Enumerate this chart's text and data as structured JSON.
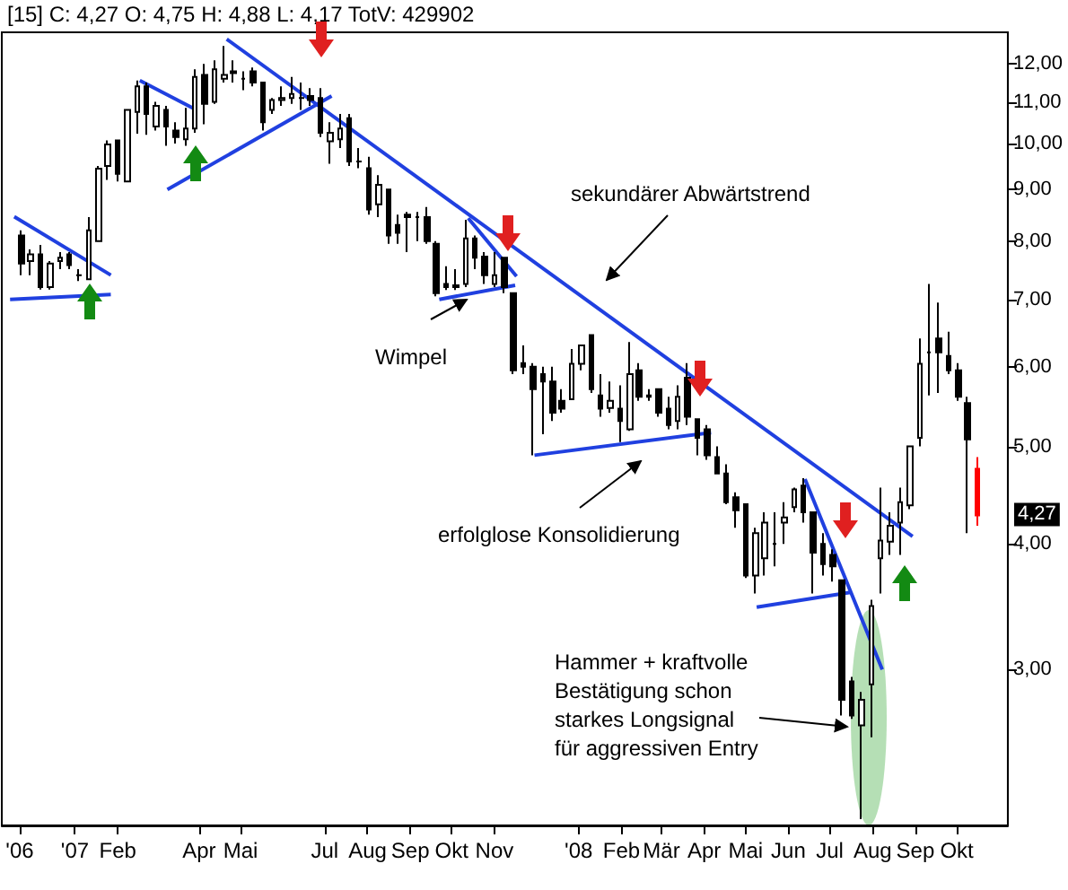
{
  "chart_data": {
    "type": "candlestick",
    "title": "[15] C: 4,27 O: 4,75 H: 4,88 L: 4,17 TotV: 429902",
    "log": true,
    "marker": "none",
    "ylim": [
      2.1,
      12.9
    ],
    "yticks": [
      {
        "value": 3,
        "label": "3,00"
      },
      {
        "value": 4,
        "label": "4,00"
      },
      {
        "value": 5,
        "label": "5,00"
      },
      {
        "value": 6,
        "label": "6,00"
      },
      {
        "value": 7,
        "label": "7,00"
      },
      {
        "value": 8,
        "label": "8,00"
      },
      {
        "value": 9,
        "label": "9,00"
      },
      {
        "value": 10,
        "label": "10,00"
      },
      {
        "value": 11,
        "label": "11,00"
      },
      {
        "value": 12,
        "label": "12,00"
      }
    ],
    "xlim": [
      "2006-11-09",
      "2008-11-07"
    ],
    "xticks": [
      {
        "value": "2006-11-22",
        "label": "'06"
      },
      {
        "value": "2007-01-01",
        "label": "'07"
      },
      {
        "value": "2007-02-01",
        "label": "Feb"
      },
      {
        "value": "2007-04-01",
        "label": "Apr"
      },
      {
        "value": "2007-05-01",
        "label": "Mai"
      },
      {
        "value": "2007-07-01",
        "label": "Jul"
      },
      {
        "value": "2007-08-01",
        "label": "Aug"
      },
      {
        "value": "2007-09-01",
        "label": "Sep"
      },
      {
        "value": "2007-10-01",
        "label": "Okt"
      },
      {
        "value": "2007-11-01",
        "label": "Nov"
      },
      {
        "value": "2008-01-01",
        "label": "'08"
      },
      {
        "value": "2008-02-01",
        "label": "Feb"
      },
      {
        "value": "2008-03-01",
        "label": "Mär"
      },
      {
        "value": "2008-04-01",
        "label": "Apr"
      },
      {
        "value": "2008-05-01",
        "label": "Mai"
      },
      {
        "value": "2008-06-01",
        "label": "Jun"
      },
      {
        "value": "2008-07-01",
        "label": "Jul"
      },
      {
        "value": "2008-08-01",
        "label": "Aug"
      },
      {
        "value": "2008-09-01",
        "label": "Sep"
      },
      {
        "value": "2008-10-01",
        "label": "Okt"
      }
    ],
    "annotations": [
      "sekundärer Abwärtstrend",
      "Wimpel",
      "erfolglose Konsolidierung",
      "Hammer + kraftvolle\nBestätigung schon\nstarkes Longsignal\nfür aggressiven Entry",
      "4,27"
    ],
    "series": [
      {
        "type": "candlestick",
        "x": [
          "2006-11-23",
          "2006-11-30",
          "2006-12-07",
          "2006-12-14",
          "2006-12-21",
          "2006-12-28",
          "2007-01-04",
          "2007-01-11",
          "2007-01-18",
          "2007-01-25",
          "2007-02-01",
          "2007-02-08",
          "2007-02-15",
          "2007-02-22",
          "2007-03-01",
          "2007-03-08",
          "2007-03-15",
          "2007-03-22",
          "2007-03-29",
          "2007-04-05",
          "2007-04-12",
          "2007-04-19",
          "2007-04-26",
          "2007-05-03",
          "2007-05-10",
          "2007-05-17",
          "2007-05-24",
          "2007-05-31",
          "2007-06-07",
          "2007-06-14",
          "2007-06-21",
          "2007-06-28",
          "2007-07-05",
          "2007-07-12",
          "2007-07-19",
          "2007-07-26",
          "2007-08-02",
          "2007-08-09",
          "2007-08-16",
          "2007-08-23",
          "2007-08-30",
          "2007-09-06",
          "2007-09-13",
          "2007-09-20",
          "2007-09-27",
          "2007-10-04",
          "2007-10-11",
          "2007-10-18",
          "2007-10-25",
          "2007-11-01",
          "2007-11-08",
          "2007-11-15",
          "2007-11-22",
          "2007-11-29",
          "2007-12-06",
          "2007-12-13",
          "2007-12-20",
          "2007-12-27",
          "2008-01-03",
          "2008-01-10",
          "2008-01-17",
          "2008-01-24",
          "2008-01-31",
          "2008-02-07",
          "2008-02-14",
          "2008-02-21",
          "2008-02-28",
          "2008-03-06",
          "2008-03-13",
          "2008-03-20",
          "2008-03-27",
          "2008-04-03",
          "2008-04-10",
          "2008-04-17",
          "2008-04-24",
          "2008-05-01",
          "2008-05-08",
          "2008-05-15",
          "2008-05-22",
          "2008-05-29",
          "2008-06-05",
          "2008-06-12",
          "2008-06-19",
          "2008-06-26",
          "2008-07-03",
          "2008-07-10",
          "2008-07-17",
          "2008-07-24",
          "2008-07-31",
          "2008-08-07",
          "2008-08-14",
          "2008-08-21",
          "2008-08-28",
          "2008-09-04",
          "2008-09-11",
          "2008-09-18",
          "2008-09-25",
          "2008-10-02",
          "2008-10-09",
          "2008-10-16"
        ],
        "ohlc": [
          [
            8.1,
            8.2,
            7.4,
            7.6
          ],
          [
            7.64,
            7.85,
            7.4,
            7.76
          ],
          [
            7.76,
            7.93,
            7.16,
            7.2
          ],
          [
            7.2,
            7.64,
            7.16,
            7.6
          ],
          [
            7.64,
            7.8,
            7.5,
            7.7
          ],
          [
            7.76,
            7.8,
            7.5,
            7.57
          ],
          [
            7.4,
            7.5,
            7.3,
            7.4
          ],
          [
            7.33,
            8.45,
            7.33,
            8.2
          ],
          [
            8.0,
            9.5,
            8.0,
            9.44
          ],
          [
            9.5,
            10.07,
            9.2,
            9.98
          ],
          [
            10.07,
            10.07,
            9.17,
            9.33
          ],
          [
            9.17,
            10.8,
            9.17,
            10.8
          ],
          [
            10.75,
            11.55,
            10.23,
            11.4
          ],
          [
            11.4,
            11.5,
            10.2,
            10.7
          ],
          [
            10.4,
            11.0,
            10.3,
            10.9
          ],
          [
            10.8,
            10.9,
            9.95,
            10.4
          ],
          [
            10.3,
            10.5,
            10.0,
            10.15
          ],
          [
            10.1,
            10.85,
            9.95,
            10.35
          ],
          [
            10.35,
            11.85,
            10.25,
            11.65
          ],
          [
            11.7,
            12.0,
            10.45,
            10.95
          ],
          [
            11.0,
            12.1,
            10.95,
            11.85
          ],
          [
            11.6,
            12.5,
            11.5,
            11.7
          ],
          [
            11.8,
            12.1,
            11.5,
            11.75
          ],
          [
            11.6,
            11.8,
            11.3,
            11.6
          ],
          [
            11.8,
            11.9,
            11.4,
            11.5
          ],
          [
            11.5,
            11.5,
            10.3,
            10.5
          ],
          [
            10.8,
            11.1,
            10.7,
            11.05
          ],
          [
            11.05,
            11.4,
            10.9,
            11.1
          ],
          [
            11.1,
            11.65,
            10.95,
            11.2
          ],
          [
            11.1,
            11.5,
            10.8,
            11.1
          ],
          [
            11.15,
            11.35,
            10.9,
            11.05
          ],
          [
            11.1,
            11.35,
            10.15,
            10.25
          ],
          [
            10.05,
            10.5,
            9.55,
            10.25
          ],
          [
            10.1,
            10.7,
            9.9,
            10.35
          ],
          [
            10.6,
            10.7,
            9.5,
            9.6
          ],
          [
            9.6,
            9.9,
            9.45,
            9.6
          ],
          [
            9.45,
            9.7,
            8.5,
            8.6
          ],
          [
            8.7,
            9.3,
            8.45,
            9.1
          ],
          [
            9.0,
            9.0,
            7.95,
            8.1
          ],
          [
            8.3,
            8.5,
            7.95,
            8.15
          ],
          [
            8.5,
            8.55,
            7.8,
            8.45
          ],
          [
            8.45,
            8.55,
            8.0,
            8.45
          ],
          [
            8.45,
            8.65,
            7.95,
            8.0
          ],
          [
            7.95,
            8.0,
            7.05,
            7.1
          ],
          [
            7.25,
            7.55,
            7.15,
            7.2
          ],
          [
            7.23,
            7.5,
            7.15,
            7.2
          ],
          [
            7.25,
            8.4,
            7.2,
            8.05
          ],
          [
            8.05,
            8.1,
            7.5,
            7.7
          ],
          [
            7.72,
            7.8,
            7.25,
            7.4
          ],
          [
            7.25,
            7.8,
            7.2,
            7.4
          ],
          [
            7.7,
            7.7,
            7.1,
            7.2
          ],
          [
            7.1,
            7.1,
            5.9,
            5.95
          ],
          [
            6.05,
            6.3,
            5.9,
            6.0
          ],
          [
            6.0,
            6.05,
            4.9,
            5.7
          ],
          [
            5.9,
            6.0,
            5.14,
            5.8
          ],
          [
            5.8,
            6.0,
            5.3,
            5.4
          ],
          [
            5.55,
            5.7,
            5.4,
            5.45
          ],
          [
            5.57,
            6.25,
            5.57,
            6.04
          ],
          [
            6.04,
            6.3,
            5.95,
            6.3
          ],
          [
            6.45,
            6.45,
            5.65,
            5.7
          ],
          [
            5.62,
            5.9,
            5.35,
            5.45
          ],
          [
            5.46,
            5.8,
            5.4,
            5.55
          ],
          [
            5.45,
            5.75,
            5.05,
            5.3
          ],
          [
            5.2,
            6.35,
            5.18,
            5.9
          ],
          [
            5.95,
            6.05,
            5.55,
            5.6
          ],
          [
            5.62,
            5.7,
            5.55,
            5.6
          ],
          [
            5.7,
            5.7,
            5.35,
            5.4
          ],
          [
            5.45,
            5.6,
            5.2,
            5.25
          ],
          [
            5.3,
            5.75,
            5.2,
            5.6
          ],
          [
            5.85,
            6.05,
            5.25,
            5.35
          ],
          [
            5.32,
            5.32,
            4.9,
            5.1
          ],
          [
            5.2,
            5.25,
            4.85,
            4.9
          ],
          [
            4.88,
            5.0,
            4.7,
            4.7
          ],
          [
            4.7,
            4.8,
            4.38,
            4.4
          ],
          [
            4.45,
            4.5,
            4.15,
            4.32
          ],
          [
            4.38,
            4.38,
            3.7,
            3.72
          ],
          [
            3.72,
            4.15,
            3.57,
            4.1
          ],
          [
            3.87,
            4.3,
            3.72,
            4.2
          ],
          [
            4.0,
            4.3,
            3.8,
            4.0
          ],
          [
            4.2,
            4.4,
            4.0,
            4.25
          ],
          [
            4.35,
            4.55,
            4.3,
            4.53
          ],
          [
            4.57,
            4.65,
            4.2,
            4.3
          ],
          [
            4.3,
            4.3,
            3.57,
            3.92
          ],
          [
            4.0,
            4.1,
            3.72,
            3.82
          ],
          [
            3.9,
            3.95,
            3.67,
            3.8
          ],
          [
            3.68,
            3.68,
            2.7,
            2.8
          ],
          [
            2.92,
            2.95,
            2.68,
            2.7
          ],
          [
            2.64,
            2.85,
            2.13,
            2.8
          ],
          [
            2.9,
            3.52,
            2.57,
            3.47
          ],
          [
            3.87,
            4.55,
            3.57,
            4.03
          ],
          [
            4.02,
            4.3,
            3.9,
            4.17
          ],
          [
            4.2,
            4.55,
            3.9,
            4.4
          ],
          [
            4.37,
            5.0,
            4.33,
            5.0
          ],
          [
            5.1,
            6.4,
            5.0,
            6.04
          ],
          [
            6.2,
            7.25,
            5.62,
            6.2
          ],
          [
            6.4,
            6.95,
            5.65,
            6.2
          ],
          [
            6.15,
            6.5,
            5.9,
            5.95
          ],
          [
            5.95,
            6.05,
            5.55,
            5.6
          ],
          [
            5.52,
            5.6,
            4.1,
            5.08
          ],
          [
            4.75,
            4.88,
            4.17,
            4.27
          ]
        ],
        "colors": [
          "#000000",
          "#ffffff",
          "#000000",
          "#ffffff",
          "#ffffff",
          "#000000",
          "#000000",
          "#ffffff",
          "#ffffff",
          "#ffffff",
          "#000000",
          "#ffffff",
          "#ffffff",
          "#000000",
          "#ffffff",
          "#000000",
          "#000000",
          "#ffffff",
          "#ffffff",
          "#000000",
          "#ffffff",
          "#ffffff",
          "#000000",
          "#000000",
          "#000000",
          "#000000",
          "#ffffff",
          "#ffffff",
          "#ffffff",
          "#000000",
          "#000000",
          "#000000",
          "#ffffff",
          "#ffffff",
          "#000000",
          "#000000",
          "#000000",
          "#ffffff",
          "#000000",
          "#000000",
          "#000000",
          "#000000",
          "#000000",
          "#000000",
          "#000000",
          "#000000",
          "#ffffff",
          "#000000",
          "#000000",
          "#ffffff",
          "#000000",
          "#000000",
          "#000000",
          "#000000",
          "#000000",
          "#000000",
          "#000000",
          "#ffffff",
          "#ffffff",
          "#000000",
          "#000000",
          "#ffffff",
          "#000000",
          "#ffffff",
          "#000000",
          "#000000",
          "#000000",
          "#000000",
          "#ffffff",
          "#000000",
          "#000000",
          "#000000",
          "#000000",
          "#000000",
          "#000000",
          "#000000",
          "#ffffff",
          "#ffffff",
          "#000000",
          "#ffffff",
          "#ffffff",
          "#000000",
          "#000000",
          "#000000",
          "#000000",
          "#000000",
          "#000000",
          "#ffffff",
          "#ffffff",
          "#ffffff",
          "#ffffff",
          "#ffffff",
          "#ffffff",
          "#ffffff",
          "#000000",
          "#000000",
          "#000000",
          "#000000",
          "#000000",
          "#ff0000"
        ]
      },
      {
        "type": "line",
        "color": "#2040e0",
        "x": [
          "2006-11-18",
          "2007-01-27"
        ],
        "values": [
          8.46,
          7.4
        ]
      },
      {
        "type": "line",
        "color": "#2040e0",
        "x": [
          "2006-11-15",
          "2007-01-27"
        ],
        "values": [
          7.0,
          7.08
        ]
      },
      {
        "type": "line",
        "color": "#2040e0",
        "x": [
          "2007-02-17",
          "2007-03-30"
        ],
        "values": [
          11.55,
          10.8
        ]
      },
      {
        "type": "line",
        "color": "#2040e0",
        "x": [
          "2007-03-09",
          "2007-07-06"
        ],
        "values": [
          9.0,
          11.15
        ]
      },
      {
        "type": "line",
        "color": "#2040e0",
        "x": [
          "2007-04-21",
          "2008-08-30"
        ],
        "values": [
          12.7,
          4.07
        ]
      },
      {
        "type": "line",
        "color": "#2040e0",
        "x": [
          "2007-10-13",
          "2007-11-17"
        ],
        "values": [
          8.43,
          7.38
        ]
      },
      {
        "type": "line",
        "color": "#2040e0",
        "x": [
          "2007-09-22",
          "2007-11-16"
        ],
        "values": [
          7.0,
          7.23
        ]
      },
      {
        "type": "line",
        "color": "#2040e0",
        "x": [
          "2007-11-30",
          "2008-04-06"
        ],
        "values": [
          4.9,
          5.16
        ]
      },
      {
        "type": "line",
        "color": "#2040e0",
        "x": [
          "2008-06-13",
          "2008-08-08"
        ],
        "values": [
          4.64,
          3.0
        ]
      },
      {
        "type": "line",
        "color": "#2040e0",
        "x": [
          "2008-05-09",
          "2008-07-16"
        ],
        "values": [
          3.46,
          3.58
        ]
      }
    ]
  }
}
